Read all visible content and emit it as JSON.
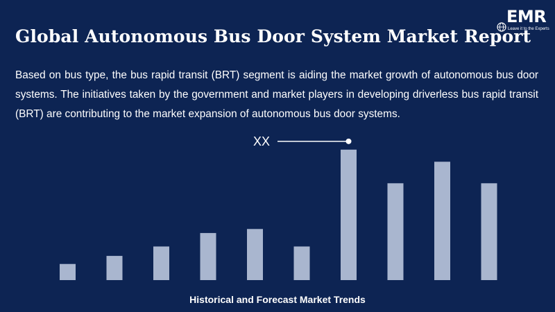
{
  "title": "Global Autonomous Bus Door System Market Report",
  "description": "Based on bus type, the bus rapid transit (BRT) segment is aiding the market growth of autonomous bus door systems. The initiatives taken by the government and market players in developing driverless bus rapid transit (BRT) are contributing to the market expansion of autonomous bus door systems.",
  "logo": {
    "text": "EMR",
    "tagline": "Leave it to the Experts"
  },
  "colors": {
    "background": "#0d2453",
    "bar": "#a9b6cf",
    "text": "#ffffff"
  },
  "chart_data": {
    "type": "bar",
    "title": "",
    "caption": "Historical and Forecast Market Trends",
    "annotation": "XX",
    "annotation_bar_index": 6,
    "values": [
      12,
      18,
      25,
      35,
      38,
      25,
      97,
      72,
      88,
      72
    ],
    "ylim": [
      0,
      100
    ],
    "grid": false,
    "axes_visible": false
  }
}
